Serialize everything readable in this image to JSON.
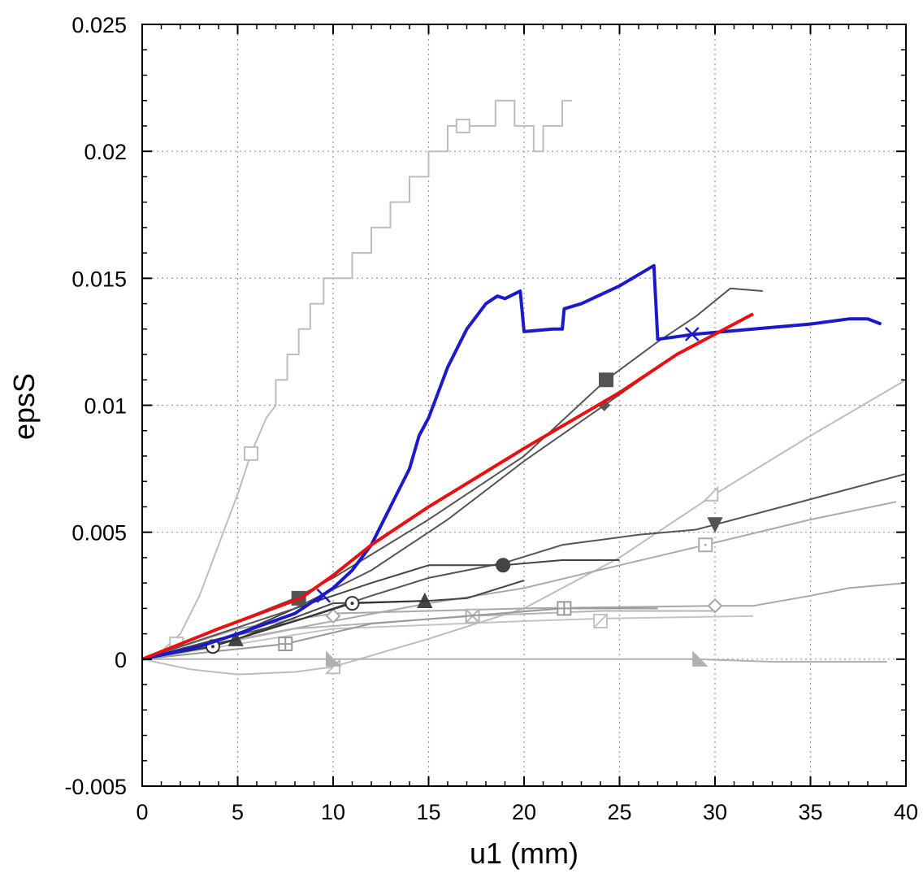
{
  "chart_data": {
    "type": "line",
    "xlabel": "u1 (mm)",
    "ylabel": "epsS",
    "xlim": [
      0,
      40
    ],
    "ylim": [
      -0.005,
      0.025
    ],
    "xticks": [
      0,
      5,
      10,
      15,
      20,
      25,
      30,
      35,
      40
    ],
    "xtick_labels": [
      "0",
      "5",
      "10",
      "15",
      "20",
      "25",
      "30",
      "35",
      "40"
    ],
    "yticks": [
      -0.005,
      0,
      0.005,
      0.01,
      0.015,
      0.02,
      0.025
    ],
    "ytick_labels": [
      "-0.005",
      "0",
      "0.005",
      "0.01",
      "0.015",
      "0.02",
      "0.025"
    ],
    "grid": true,
    "series": [
      {
        "color": "#bdbdbd",
        "width": 2,
        "marker": "open-square",
        "marker_at": [
          [
            1.8,
            0.0006
          ],
          [
            5.7,
            0.0081
          ],
          [
            16.8,
            0.021
          ]
        ],
        "points": [
          [
            0,
            0
          ],
          [
            1,
            0.0003
          ],
          [
            2,
            0.001
          ],
          [
            3,
            0.0025
          ],
          [
            4,
            0.0045
          ],
          [
            5,
            0.0065
          ],
          [
            5.7,
            0.0081
          ],
          [
            6.5,
            0.0095
          ],
          [
            7,
            0.01
          ],
          [
            7,
            0.011
          ],
          [
            7.6,
            0.011
          ],
          [
            7.6,
            0.012
          ],
          [
            8.2,
            0.012
          ],
          [
            8.2,
            0.013
          ],
          [
            8.8,
            0.013
          ],
          [
            8.8,
            0.014
          ],
          [
            9.5,
            0.014
          ],
          [
            9.5,
            0.015
          ],
          [
            11,
            0.015
          ],
          [
            11,
            0.016
          ],
          [
            12,
            0.016
          ],
          [
            12,
            0.017
          ],
          [
            13,
            0.017
          ],
          [
            13,
            0.018
          ],
          [
            14,
            0.018
          ],
          [
            14,
            0.019
          ],
          [
            15,
            0.019
          ],
          [
            15,
            0.02
          ],
          [
            16,
            0.02
          ],
          [
            16,
            0.021
          ],
          [
            18.5,
            0.021
          ],
          [
            18.5,
            0.022
          ],
          [
            19.5,
            0.022
          ],
          [
            19.5,
            0.021
          ],
          [
            20.5,
            0.021
          ],
          [
            20.5,
            0.02
          ],
          [
            21,
            0.02
          ],
          [
            21,
            0.021
          ],
          [
            22,
            0.021
          ],
          [
            22,
            0.022
          ],
          [
            22.5,
            0.022
          ]
        ]
      },
      {
        "color": "#bdbdbd",
        "width": 2,
        "marker": "open-triangle",
        "marker_at": [
          [
            10,
            -0.0003
          ],
          [
            29.8,
            0.0065
          ]
        ],
        "points": [
          [
            0,
            0
          ],
          [
            2.5,
            -0.0004
          ],
          [
            5,
            -0.0006
          ],
          [
            8,
            -0.0005
          ],
          [
            10,
            -0.0003
          ],
          [
            15,
            0.0008
          ],
          [
            20,
            0.002
          ],
          [
            25,
            0.004
          ],
          [
            30,
            0.0065
          ],
          [
            35,
            0.0088
          ],
          [
            40,
            0.011
          ]
        ]
      },
      {
        "color": "#aaaaaa",
        "width": 2,
        "marker": "open-square-dot",
        "marker_at": [
          [
            29.5,
            0.0045
          ]
        ],
        "points": [
          [
            3,
            0.0005
          ],
          [
            10,
            0.0015
          ],
          [
            15,
            0.0022
          ],
          [
            20,
            0.0028
          ],
          [
            25,
            0.0037
          ],
          [
            29.5,
            0.0045
          ],
          [
            35,
            0.0055
          ],
          [
            39.5,
            0.0062
          ]
        ]
      },
      {
        "color": "#555555",
        "width": 2,
        "marker": "filled-inverted-triangle",
        "marker_at": [
          [
            30,
            0.0053
          ]
        ],
        "points": [
          [
            2,
            0.0004
          ],
          [
            8,
            0.0015
          ],
          [
            12,
            0.0025
          ],
          [
            15,
            0.0032
          ],
          [
            19,
            0.0038
          ],
          [
            22,
            0.0045
          ],
          [
            26,
            0.0049
          ],
          [
            29,
            0.0051
          ],
          [
            30,
            0.0053
          ],
          [
            35,
            0.0063
          ],
          [
            40,
            0.0073
          ]
        ]
      },
      {
        "color": "#b0b0b0",
        "width": 2,
        "marker": "filled-triangle-right",
        "marker_at": [
          [
            10,
            0
          ],
          [
            29.2,
            0
          ]
        ],
        "points": [
          [
            0,
            0
          ],
          [
            10,
            0
          ],
          [
            29,
            0
          ],
          [
            33,
            -0.0001
          ],
          [
            39,
            -0.0001
          ]
        ]
      },
      {
        "color": "#a8a8a8",
        "width": 2,
        "marker": "open-diamond",
        "marker_at": [
          [
            10,
            0.0017
          ],
          [
            30,
            0.0021
          ]
        ],
        "points": [
          [
            0,
            0
          ],
          [
            5,
            0.0012
          ],
          [
            10,
            0.0018
          ],
          [
            20,
            0.002
          ],
          [
            30,
            0.0021
          ],
          [
            32,
            0.0021
          ],
          [
            35,
            0.0025
          ],
          [
            37,
            0.0028
          ],
          [
            40,
            0.003
          ]
        ]
      },
      {
        "color": "#c4c4c4",
        "width": 2,
        "marker": "open-square-slash",
        "marker_at": [
          [
            24,
            0.0015
          ]
        ],
        "points": [
          [
            0,
            0
          ],
          [
            10,
            0.0012
          ],
          [
            20,
            0.0015
          ],
          [
            24,
            0.0016
          ],
          [
            32,
            0.0017
          ]
        ]
      },
      {
        "color": "#b4b4b4",
        "width": 2,
        "marker": "open-square-cross",
        "marker_at": [
          [
            17.3,
            0.0017
          ]
        ],
        "points": [
          [
            0,
            0
          ],
          [
            8,
            0.0012
          ],
          [
            17.3,
            0.0017
          ],
          [
            24,
            0.0019
          ],
          [
            30,
            0.0019
          ]
        ]
      },
      {
        "color": "#999999",
        "width": 2,
        "marker": "open-square-plus",
        "marker_at": [
          [
            7.5,
            0.0006
          ],
          [
            22.1,
            0.002
          ]
        ],
        "points": [
          [
            0,
            0
          ],
          [
            7.5,
            0.0006
          ],
          [
            12,
            0.0014
          ],
          [
            22,
            0.002
          ],
          [
            27,
            0.002
          ]
        ]
      },
      {
        "color": "#444444",
        "width": 2,
        "marker": "filled-triangle",
        "marker_at": [
          [
            4.9,
            0.0008
          ],
          [
            14.8,
            0.0023
          ]
        ],
        "points": [
          [
            0,
            0
          ],
          [
            5,
            0.0008
          ],
          [
            10,
            0.0022
          ],
          [
            15,
            0.0023
          ],
          [
            17,
            0.0024
          ],
          [
            20,
            0.0031
          ]
        ]
      },
      {
        "color": "#333333",
        "width": 2,
        "marker": "circle-dot",
        "marker_at": [
          [
            3.7,
            0.0005
          ],
          [
            11,
            0.0022
          ]
        ],
        "points": [
          [
            0,
            0
          ],
          [
            3.7,
            0.0005
          ],
          [
            8,
            0.0015
          ],
          [
            11,
            0.0022
          ],
          [
            15,
            0.0023
          ]
        ]
      },
      {
        "color": "#444444",
        "width": 2,
        "marker": "filled-circle",
        "marker_at": [
          [
            18.9,
            0.0037
          ]
        ],
        "points": [
          [
            0,
            0
          ],
          [
            5,
            0.001
          ],
          [
            8,
            0.002
          ],
          [
            12,
            0.003
          ],
          [
            15,
            0.0037
          ],
          [
            18.9,
            0.0037
          ],
          [
            22,
            0.0039
          ],
          [
            25,
            0.0039
          ]
        ]
      },
      {
        "color": "#555555",
        "width": 2,
        "marker": "filled-diamond",
        "marker_at": [
          [
            24.2,
            0.01
          ]
        ],
        "points": [
          [
            0,
            0
          ],
          [
            8,
            0.002
          ],
          [
            12,
            0.0035
          ],
          [
            16,
            0.0055
          ],
          [
            20,
            0.0078
          ],
          [
            24.2,
            0.01
          ],
          [
            28,
            0.012
          ],
          [
            32,
            0.0136
          ]
        ]
      },
      {
        "color": "#555555",
        "width": 2,
        "marker": "filled-square",
        "marker_at": [
          [
            8.2,
            0.0024
          ],
          [
            24.3,
            0.011
          ]
        ],
        "points": [
          [
            0,
            0
          ],
          [
            5,
            0.0015
          ],
          [
            8,
            0.0024
          ],
          [
            10,
            0.0032
          ],
          [
            15,
            0.0055
          ],
          [
            20,
            0.008
          ],
          [
            24.3,
            0.011
          ],
          [
            27,
            0.0125
          ],
          [
            29,
            0.0135
          ],
          [
            30.8,
            0.0146
          ],
          [
            32.5,
            0.0145
          ]
        ]
      },
      {
        "color": "#1a1acc",
        "width": 4,
        "marker": "x",
        "marker_at": [
          [
            9.5,
            0.0025
          ],
          [
            28.8,
            0.0128
          ]
        ],
        "points": [
          [
            0,
            0
          ],
          [
            3,
            0.0005
          ],
          [
            5,
            0.001
          ],
          [
            8,
            0.0018
          ],
          [
            10,
            0.0028
          ],
          [
            11,
            0.0035
          ],
          [
            12,
            0.0045
          ],
          [
            13,
            0.006
          ],
          [
            14,
            0.0075
          ],
          [
            14.5,
            0.0088
          ],
          [
            15,
            0.0095
          ],
          [
            16,
            0.0115
          ],
          [
            17,
            0.013
          ],
          [
            18,
            0.014
          ],
          [
            18.6,
            0.0143
          ],
          [
            19,
            0.0142
          ],
          [
            19.8,
            0.0145
          ],
          [
            20,
            0.0129
          ],
          [
            21.5,
            0.013
          ],
          [
            22,
            0.013
          ],
          [
            22.1,
            0.0138
          ],
          [
            23,
            0.014
          ],
          [
            25,
            0.0147
          ],
          [
            26.8,
            0.0155
          ],
          [
            27,
            0.0126
          ],
          [
            29,
            0.0128
          ],
          [
            32,
            0.013
          ],
          [
            35,
            0.0132
          ],
          [
            37,
            0.0134
          ],
          [
            38,
            0.0134
          ],
          [
            38.7,
            0.0132
          ]
        ]
      },
      {
        "color": "#e81010",
        "width": 4,
        "marker": "none",
        "marker_at": [],
        "points": [
          [
            0,
            0
          ],
          [
            4,
            0.0012
          ],
          [
            8.3,
            0.0024
          ],
          [
            10,
            0.0033
          ],
          [
            12,
            0.0045
          ],
          [
            15,
            0.006
          ],
          [
            20,
            0.0083
          ],
          [
            25,
            0.0105
          ],
          [
            28,
            0.012
          ],
          [
            32,
            0.0136
          ]
        ]
      }
    ]
  }
}
